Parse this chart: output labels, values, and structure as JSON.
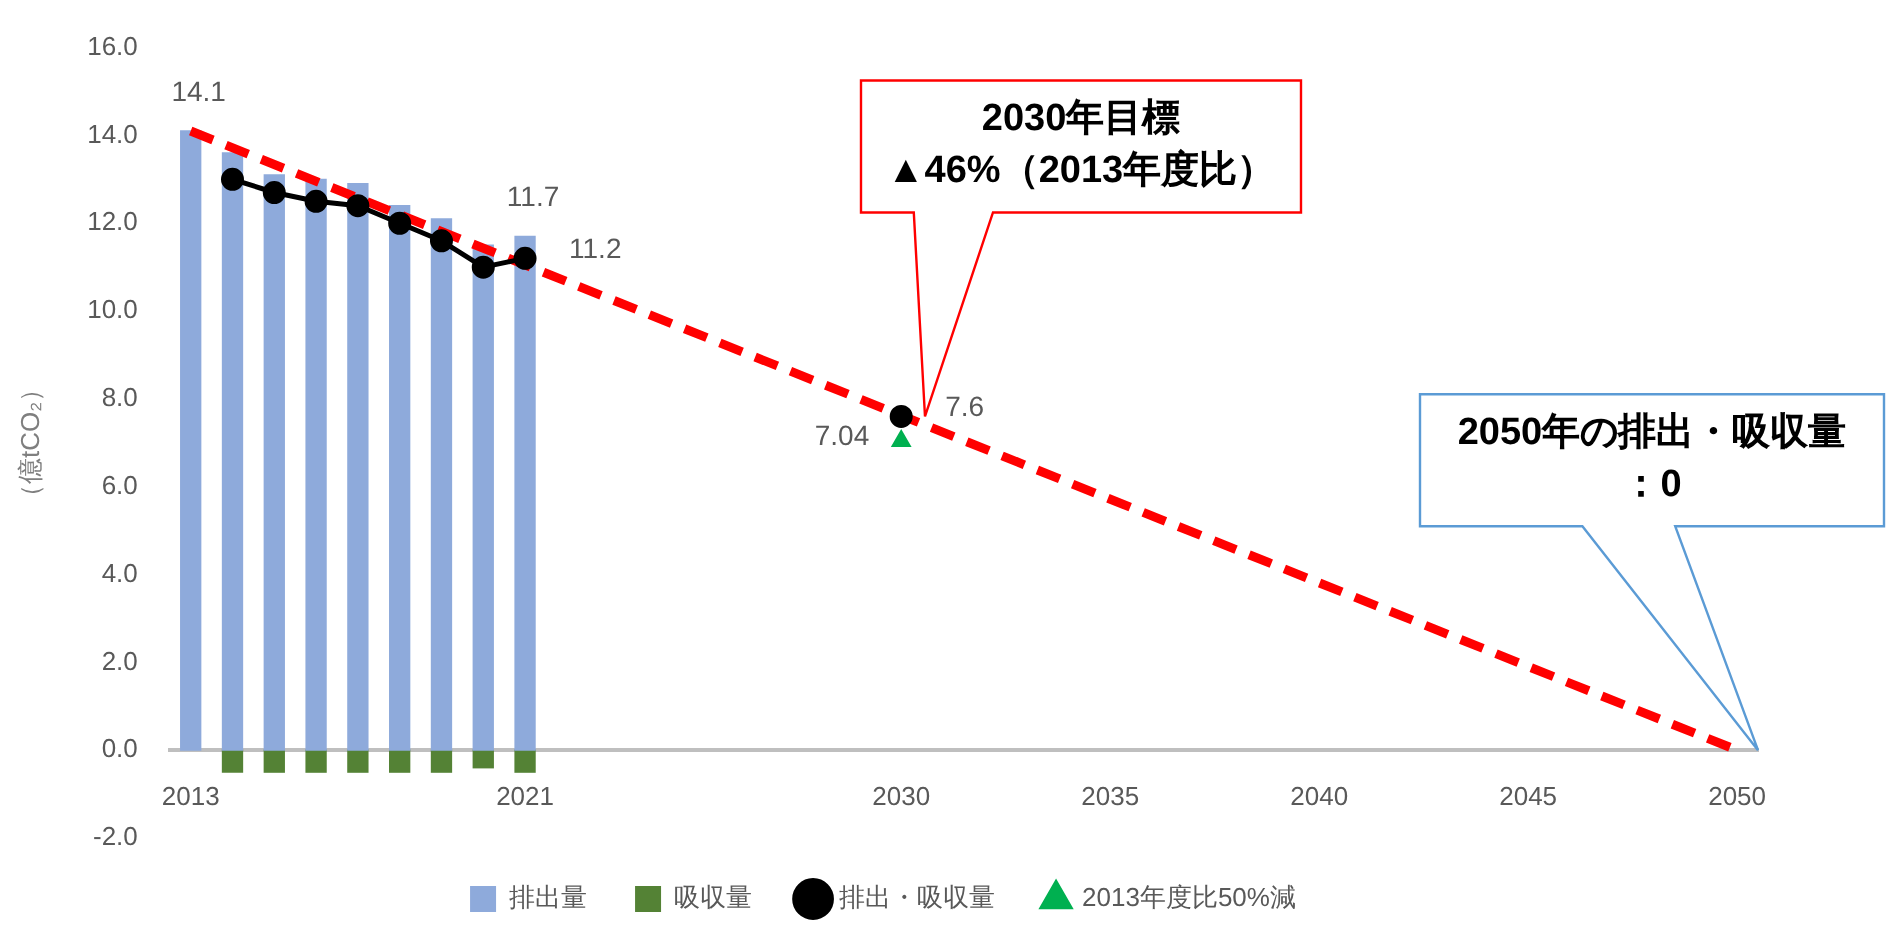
{
  "chart_data": {
    "type": "bar",
    "ylabel": "（億tCO₂）",
    "stacked": true,
    "legend": "bottom",
    "xlim": [
      2012.5,
      2050.5
    ],
    "xticks": [
      2013,
      2021,
      2030,
      2035,
      2040,
      2045,
      2050
    ],
    "ylim": [
      -2,
      16
    ],
    "yticks": [
      {
        "value": -2,
        "label": "-2.0"
      },
      {
        "value": 0,
        "label": "0.0"
      },
      {
        "value": 2,
        "label": "2.0"
      },
      {
        "value": 4,
        "label": "4.0"
      },
      {
        "value": 6,
        "label": "6.0"
      },
      {
        "value": 8,
        "label": "8.0"
      },
      {
        "value": 10,
        "label": "10.0"
      },
      {
        "value": 12,
        "label": "12.0"
      },
      {
        "value": 14,
        "label": "14.0"
      },
      {
        "value": 16,
        "label": "16.0"
      }
    ],
    "series": [
      {
        "name": "排出量",
        "color": "#8eaadb",
        "x": [
          2013,
          2014,
          2015,
          2016,
          2017,
          2018,
          2019,
          2020,
          2021
        ],
        "values": [
          14.1,
          13.6,
          13.1,
          13.0,
          12.9,
          12.4,
          12.1,
          11.5,
          11.7
        ],
        "value_labels": [
          "14.1",
          null,
          null,
          null,
          null,
          null,
          null,
          null,
          "11.7"
        ]
      },
      {
        "name": "吸収量",
        "color": "#548235",
        "x": [
          2014,
          2015,
          2016,
          2017,
          2018,
          2019,
          2020,
          2021
        ],
        "values": [
          -0.5,
          -0.5,
          -0.5,
          -0.5,
          -0.5,
          -0.5,
          -0.4,
          -0.5
        ]
      },
      {
        "name": "排出・吸収量",
        "type": "line",
        "color": "#000000",
        "marker": "circle",
        "x": [
          2014,
          2015,
          2016,
          2017,
          2018,
          2019,
          2020,
          2021,
          2025,
          2030
        ],
        "values": [
          13.0,
          12.7,
          12.5,
          12.4,
          12.0,
          11.6,
          11.0,
          11.2,
          null,
          7.6
        ],
        "value_labels": [
          null,
          null,
          null,
          null,
          null,
          null,
          null,
          "11.2",
          null,
          "7.6"
        ]
      },
      {
        "name": "2013年度比50%減",
        "type": "scatter",
        "color": "#00b050",
        "marker": "triangle",
        "x": [
          2030
        ],
        "values": [
          7.04
        ],
        "value_labels": [
          "7.04"
        ]
      },
      {
        "type": "line",
        "color": "#ff0000",
        "marker": "none",
        "line_style": "dashed",
        "x": [
          2013,
          2050
        ],
        "values": [
          14.1,
          0
        ]
      }
    ],
    "annotations": [
      "2030年目標\n▲46%（2013年度比）",
      "2050年の排出・吸収量：0"
    ]
  }
}
